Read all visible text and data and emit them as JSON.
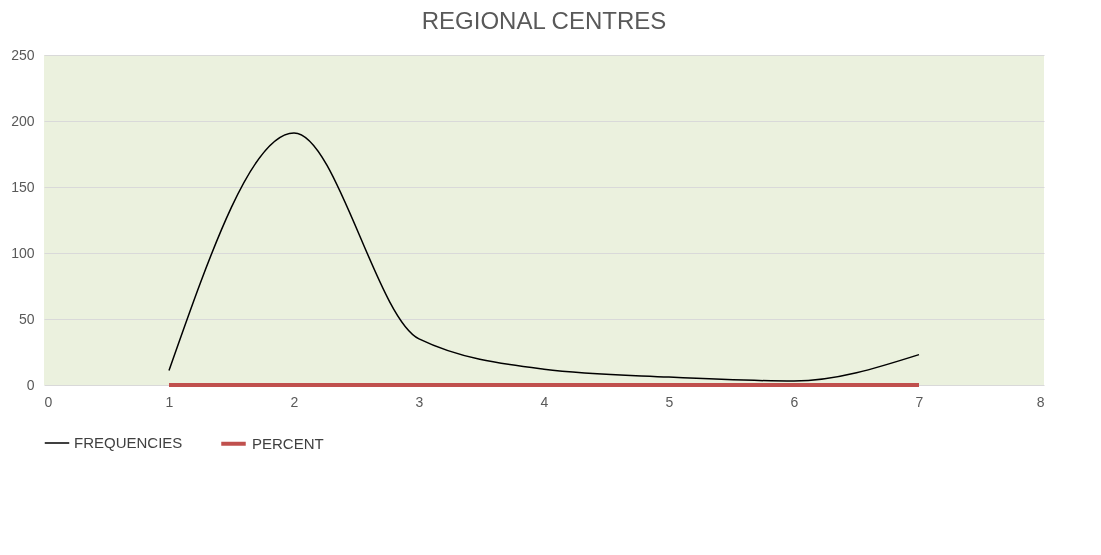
{
  "chart_data": {
    "type": "line",
    "title": "REGIONAL CENTRES",
    "x": [
      1,
      2,
      3,
      4,
      5,
      6,
      7
    ],
    "series": [
      {
        "name": "FREQUENCIES",
        "color": "#000000",
        "values": [
          11,
          191,
          35,
          12,
          6,
          3,
          23
        ]
      },
      {
        "name": "PERCENT",
        "color": "#c0504d",
        "values": [
          0,
          0,
          0,
          0,
          0,
          0,
          0
        ]
      }
    ],
    "xlim": [
      0,
      8
    ],
    "xticks": [
      0,
      1,
      2,
      3,
      4,
      5,
      6,
      7,
      8
    ],
    "ylim": [
      0,
      250
    ],
    "yticks": [
      0,
      50,
      100,
      150,
      200,
      250
    ],
    "grid": "y",
    "legend": "bottom"
  }
}
